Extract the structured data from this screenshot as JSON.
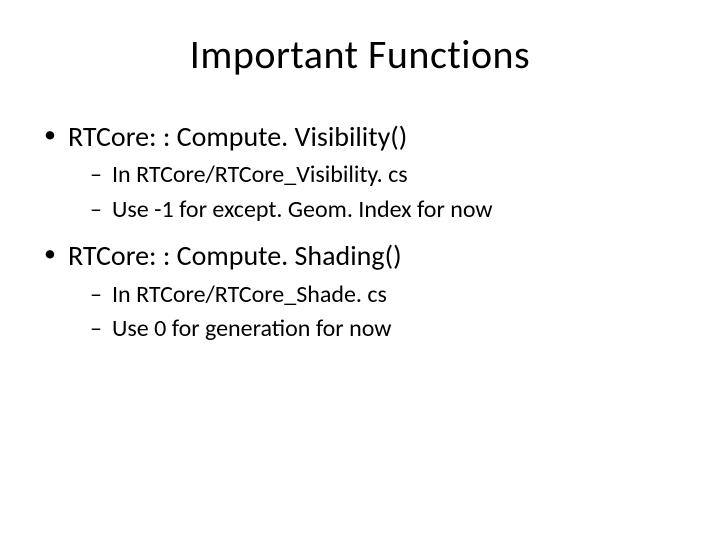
{
  "slide": {
    "title": "Important Functions",
    "bullets": [
      {
        "text": "RTCore: : Compute. Visibility()",
        "sub": [
          "In RTCore/RTCore_Visibility. cs",
          "Use -1 for except. Geom. Index for now"
        ]
      },
      {
        "text": "RTCore: : Compute. Shading()",
        "sub": [
          "In RTCore/RTCore_Shade. cs",
          "Use 0 for generation for now"
        ]
      }
    ]
  },
  "style": {
    "background_color": "#ffffff",
    "text_color": "#000000",
    "title_fontsize": 40,
    "level1_fontsize": 28,
    "level2_fontsize": 24,
    "font_family": "Calibri"
  }
}
